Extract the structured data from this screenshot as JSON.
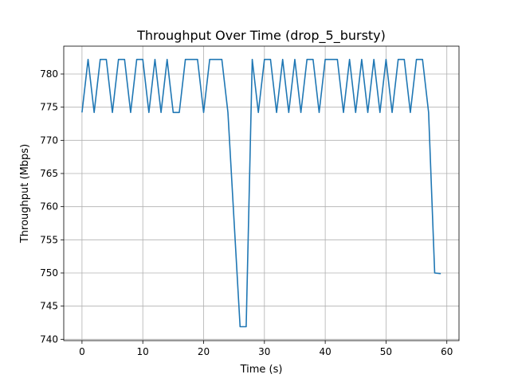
{
  "chart_data": {
    "type": "line",
    "title": "Throughput Over Time (drop_5_bursty)",
    "xlabel": "Time (s)",
    "ylabel": "Throughput (Mbps)",
    "xlim": [
      -3,
      62
    ],
    "ylim": [
      739.8,
      784.2
    ],
    "xticks": [
      0,
      10,
      20,
      30,
      40,
      50,
      60
    ],
    "yticks": [
      740,
      745,
      750,
      755,
      760,
      765,
      770,
      775,
      780
    ],
    "grid": true,
    "colors": {
      "line": "#1f77b4"
    },
    "series": [
      {
        "name": "",
        "x": [
          0,
          1,
          2,
          3,
          4,
          5,
          6,
          7,
          8,
          9,
          10,
          11,
          12,
          13,
          14,
          15,
          16,
          17,
          18,
          19,
          20,
          21,
          22,
          23,
          24,
          25,
          26,
          27,
          28,
          29,
          30,
          31,
          32,
          33,
          34,
          35,
          36,
          37,
          38,
          39,
          40,
          41,
          42,
          43,
          44,
          45,
          46,
          47,
          48,
          49,
          50,
          51,
          52,
          53,
          54,
          55,
          56,
          57,
          58,
          59
        ],
        "values": [
          774.2,
          782.2,
          774.2,
          782.2,
          782.2,
          774.2,
          782.2,
          782.2,
          774.2,
          782.2,
          782.2,
          774.2,
          782.2,
          774.2,
          782.2,
          774.2,
          774.2,
          782.2,
          782.2,
          782.2,
          774.2,
          782.2,
          782.2,
          782.2,
          774.2,
          758.0,
          741.9,
          741.9,
          782.2,
          774.2,
          782.2,
          782.2,
          774.2,
          782.2,
          774.2,
          782.2,
          774.2,
          782.2,
          782.2,
          774.2,
          782.2,
          782.2,
          782.2,
          774.2,
          782.2,
          774.2,
          782.2,
          774.2,
          782.2,
          774.2,
          782.2,
          774.2,
          782.2,
          782.2,
          774.2,
          782.2,
          782.2,
          774.2,
          750.0,
          749.9
        ]
      }
    ]
  }
}
